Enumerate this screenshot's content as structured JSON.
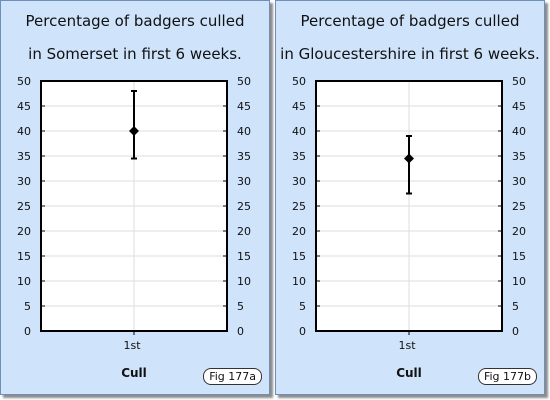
{
  "chart_data": [
    {
      "type": "scatter",
      "title_line1": "Percentage of badgers culled",
      "title_line2": "in Somerset in first 6 weeks.",
      "categories": [
        "1st"
      ],
      "values": [
        40
      ],
      "error_low": [
        34.5
      ],
      "error_high": [
        48
      ],
      "xlabel": "Cull",
      "ylim": [
        0,
        50
      ],
      "yticks": [
        0,
        5,
        10,
        15,
        20,
        25,
        30,
        35,
        40,
        45,
        50
      ],
      "grid": true,
      "figure_label": "Fig 177a"
    },
    {
      "type": "scatter",
      "title_line1": "Percentage of badgers culled",
      "title_line2": "in Gloucestershire in first 6 weeks.",
      "categories": [
        "1st"
      ],
      "values": [
        34.5
      ],
      "error_low": [
        27.5
      ],
      "error_high": [
        39
      ],
      "xlabel": "Cull",
      "ylim": [
        0,
        50
      ],
      "yticks": [
        0,
        5,
        10,
        15,
        20,
        25,
        30,
        35,
        40,
        45,
        50
      ],
      "grid": true,
      "figure_label": "Fig 177b"
    }
  ],
  "colors": {
    "panel_bg": "#cfe3fb",
    "plot_bg": "#ffffff",
    "grid": "#dddddd",
    "marker": "#000000"
  }
}
